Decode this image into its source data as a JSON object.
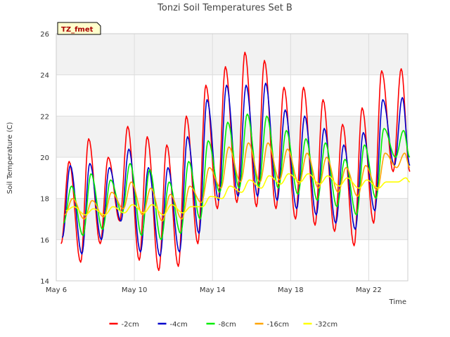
{
  "chart_data": {
    "type": "line",
    "title": "Tonzi Soil Temperatures Set B",
    "xlabel": "Time",
    "ylabel": "Soil Temperature (C)",
    "badge": "TZ_fmet",
    "x_range": [
      "2024-05-06",
      "2024-05-24"
    ],
    "x_ticks": [
      {
        "date": "2024-05-06",
        "label": "May 6"
      },
      {
        "date": "2024-05-10",
        "label": "May 10"
      },
      {
        "date": "2024-05-14",
        "label": "May 14"
      },
      {
        "date": "2024-05-18",
        "label": "May 18"
      },
      {
        "date": "2024-05-22",
        "label": "May 22"
      }
    ],
    "ylim": [
      14,
      26
    ],
    "y_ticks": [
      "14",
      "16",
      "18",
      "20",
      "22",
      "24",
      "26"
    ],
    "grid": true,
    "legend_position": "bottom",
    "x": [
      "2024-05-06 12:00",
      "2024-05-07 12:00",
      "2024-05-08 12:00",
      "2024-05-09 12:00",
      "2024-05-10 12:00",
      "2024-05-11 12:00",
      "2024-05-12 12:00",
      "2024-05-13 12:00",
      "2024-05-14 12:00",
      "2024-05-15 12:00",
      "2024-05-16 12:00",
      "2024-05-17 12:00",
      "2024-05-18 12:00",
      "2024-05-19 12:00",
      "2024-05-20 12:00",
      "2024-05-21 12:00",
      "2024-05-22 12:00",
      "2024-05-23 12:00"
    ],
    "series": [
      {
        "name": "-2cm",
        "color": "#ff0000",
        "max": [
          19.8,
          20.9,
          20.0,
          21.5,
          21.0,
          20.6,
          22.0,
          23.5,
          24.4,
          25.1,
          24.7,
          23.4,
          23.4,
          22.8,
          21.6,
          22.4,
          24.2,
          24.3
        ],
        "min": [
          15.8,
          14.9,
          15.8,
          16.9,
          15.0,
          14.5,
          14.7,
          15.8,
          17.5,
          17.8,
          17.6,
          17.5,
          17.0,
          16.7,
          16.4,
          15.7,
          16.8,
          19.3
        ]
      },
      {
        "name": "-4cm",
        "color": "#0000cc",
        "max": [
          19.6,
          19.7,
          19.5,
          20.4,
          19.5,
          19.5,
          21.0,
          22.8,
          23.5,
          23.5,
          23.6,
          22.3,
          22.0,
          21.4,
          20.6,
          21.2,
          22.8,
          22.9
        ],
        "min": [
          16.1,
          15.3,
          16.0,
          16.9,
          15.4,
          15.2,
          15.4,
          16.3,
          17.9,
          18.1,
          18.1,
          17.9,
          17.5,
          17.2,
          16.8,
          16.5,
          17.4,
          19.6
        ]
      },
      {
        "name": "-8cm",
        "color": "#00ee00",
        "max": [
          18.6,
          19.2,
          18.9,
          19.7,
          19.4,
          18.8,
          19.8,
          20.8,
          21.7,
          22.1,
          22.0,
          21.3,
          20.9,
          20.7,
          19.9,
          20.6,
          21.4,
          21.3
        ],
        "min": [
          16.8,
          16.2,
          16.5,
          17.3,
          16.2,
          16.0,
          16.3,
          17.0,
          18.3,
          18.5,
          18.6,
          18.5,
          18.2,
          17.9,
          17.6,
          17.2,
          18.0,
          20.0
        ]
      },
      {
        "name": "-16cm",
        "color": "#ffa500",
        "max": [
          18.0,
          17.9,
          18.3,
          18.8,
          18.5,
          18.2,
          18.6,
          19.5,
          20.5,
          20.7,
          20.7,
          20.4,
          20.2,
          20.0,
          19.5,
          19.6,
          20.2,
          20.2
        ],
        "min": [
          17.2,
          17.0,
          17.1,
          17.5,
          17.2,
          16.9,
          17.0,
          17.8,
          18.5,
          18.8,
          18.8,
          18.9,
          18.7,
          18.5,
          18.3,
          18.1,
          18.4,
          19.5
        ]
      },
      {
        "name": "-32cm",
        "color": "#ffff00",
        "max": [
          17.6,
          17.5,
          17.6,
          17.7,
          17.7,
          17.7,
          17.6,
          18.1,
          18.6,
          18.9,
          19.1,
          19.2,
          19.2,
          19.1,
          19.0,
          18.9,
          18.8,
          19.0
        ],
        "min": [
          17.4,
          17.2,
          17.2,
          17.3,
          17.3,
          17.2,
          17.3,
          17.6,
          18.0,
          18.3,
          18.5,
          18.7,
          18.8,
          18.7,
          18.6,
          18.5,
          18.5,
          18.8
        ]
      }
    ]
  }
}
